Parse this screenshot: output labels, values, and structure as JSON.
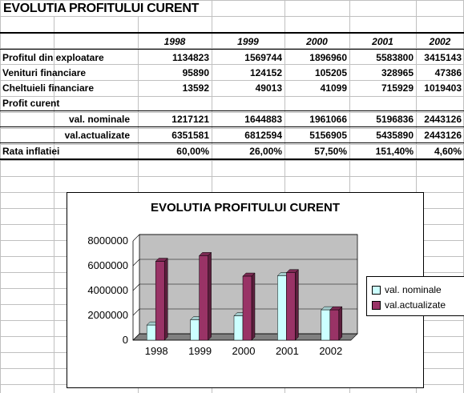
{
  "sheet": {
    "title": "EVOLUTIA PROFITULUI CURENT",
    "years": [
      "1998",
      "1999",
      "2000",
      "2001",
      "2002"
    ],
    "rows": [
      {
        "label": "Profitul din exploatare",
        "values": [
          "1134823",
          "1569744",
          "1896960",
          "5583800",
          "3415143"
        ]
      },
      {
        "label": "Venituri financiare",
        "values": [
          "95890",
          "124152",
          "105205",
          "328965",
          "47386"
        ]
      },
      {
        "label": "Cheltuieli financiare",
        "values": [
          "13592",
          "49013",
          "41099",
          "715929",
          "1019403"
        ]
      }
    ],
    "profit_label": "Profit curent",
    "nominal": {
      "label": "val. nominale",
      "values": [
        "1217121",
        "1644883",
        "1961066",
        "5196836",
        "2443126"
      ]
    },
    "actual": {
      "label": "val.actualizate",
      "values": [
        "6351581",
        "6812594",
        "5156905",
        "5435890",
        "2443126"
      ]
    },
    "inflation": {
      "label": "Rata inflatiei",
      "values": [
        "60,00%",
        "26,00%",
        "57,50%",
        "151,40%",
        "4,60%"
      ]
    }
  },
  "chart_data": {
    "type": "bar",
    "title": "EVOLUTIA PROFITULUI CURENT",
    "categories": [
      "1998",
      "1999",
      "2000",
      "2001",
      "2002"
    ],
    "series": [
      {
        "name": "val. nominale",
        "values": [
          1217121,
          1644883,
          1961066,
          5196836,
          2443126
        ],
        "color": "#ccffff"
      },
      {
        "name": "val.actualizate",
        "values": [
          6351581,
          6812594,
          5156905,
          5435890,
          2443126
        ],
        "color": "#993366"
      }
    ],
    "ylim": [
      0,
      8000000
    ],
    "yticks": [
      "0",
      "2000000",
      "4000000",
      "6000000",
      "8000000"
    ],
    "plot_background": "#c0c0c0",
    "legend_position": "right",
    "grid": true
  }
}
